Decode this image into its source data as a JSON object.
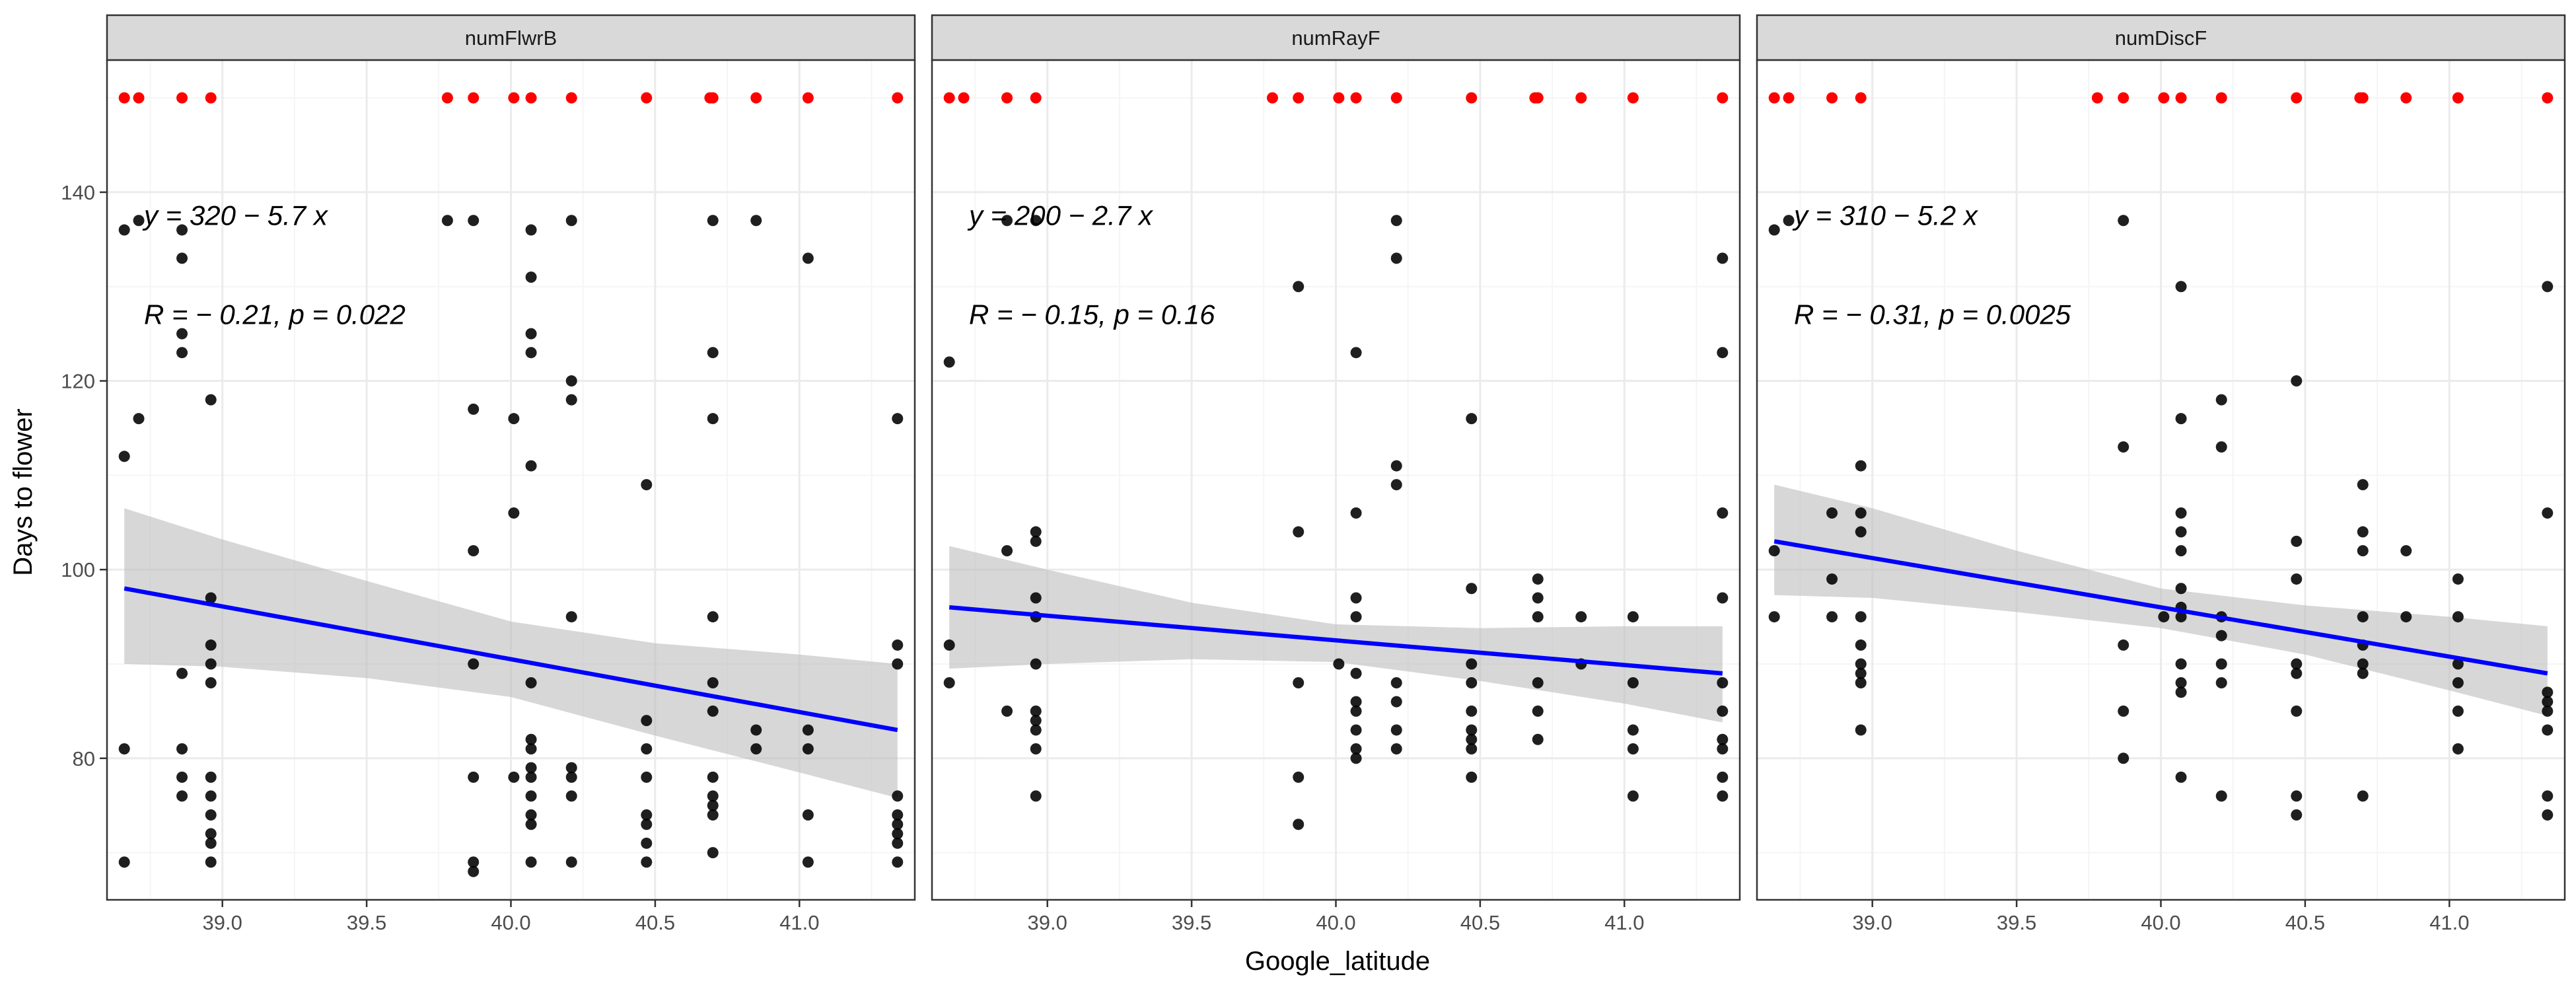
{
  "chart_data": {
    "type": "scatter",
    "xlabel": "Google_latitude",
    "ylabel": "Days to flower",
    "xlim": [
      38.6,
      41.4
    ],
    "ylim": [
      65,
      154
    ],
    "x_ticks": [
      39.0,
      39.5,
      40.0,
      40.5,
      41.0
    ],
    "x_tick_labels": [
      "39.0",
      "39.5",
      "40.0",
      "40.5",
      "41.0"
    ],
    "y_ticks": [
      80,
      100,
      120,
      140
    ],
    "y_tick_labels": [
      "80",
      "100",
      "120",
      "140"
    ],
    "grid": true,
    "colors": {
      "point": "#000000",
      "top_point": "#ff0000",
      "fit_line": "#0000ff",
      "ci_band": "#bebebe",
      "strip_fill": "#d9d9d9",
      "grid_major": "#ebebeb",
      "grid_minor": "#f5f5f5"
    },
    "top_marker_y": 150,
    "panels": [
      {
        "strip": "numFlwrB",
        "equation": "y = 320 − 5.7 x",
        "stats": "R = − 0.21, p = 0.022",
        "fit": {
          "x": [
            38.66,
            41.34
          ],
          "y": [
            98,
            83
          ]
        },
        "ci": [
          [
            38.66,
            106.5,
            90.0
          ],
          [
            39.0,
            103.2,
            89.7
          ],
          [
            39.5,
            98.8,
            88.5
          ],
          [
            40.0,
            94.5,
            86.5
          ],
          [
            40.5,
            92.2,
            82.4
          ],
          [
            41.0,
            91.0,
            78.5
          ],
          [
            41.34,
            90.0,
            75.8
          ]
        ],
        "top_x": [
          38.66,
          38.71,
          38.86,
          38.96,
          39.78,
          39.87,
          40.01,
          40.07,
          40.21,
          40.47,
          40.69,
          40.7,
          40.85,
          41.03,
          41.34
        ],
        "points": [
          [
            38.66,
            136
          ],
          [
            38.71,
            137
          ],
          [
            38.71,
            116
          ],
          [
            38.66,
            112
          ],
          [
            38.66,
            81
          ],
          [
            38.66,
            69
          ],
          [
            38.86,
            136
          ],
          [
            38.86,
            133
          ],
          [
            38.86,
            125
          ],
          [
            38.86,
            123
          ],
          [
            38.86,
            89
          ],
          [
            38.86,
            81
          ],
          [
            38.86,
            78
          ],
          [
            38.86,
            76
          ],
          [
            38.96,
            118
          ],
          [
            38.96,
            97
          ],
          [
            38.96,
            92
          ],
          [
            38.96,
            90
          ],
          [
            38.96,
            88
          ],
          [
            38.96,
            78
          ],
          [
            38.96,
            76
          ],
          [
            38.96,
            74
          ],
          [
            38.96,
            72
          ],
          [
            38.96,
            71
          ],
          [
            38.96,
            69
          ],
          [
            39.78,
            137
          ],
          [
            39.87,
            137
          ],
          [
            39.87,
            117
          ],
          [
            39.87,
            102
          ],
          [
            39.87,
            90
          ],
          [
            39.87,
            78
          ],
          [
            39.87,
            69
          ],
          [
            39.87,
            68
          ],
          [
            40.01,
            116
          ],
          [
            40.01,
            106
          ],
          [
            40.01,
            78
          ],
          [
            40.07,
            136
          ],
          [
            40.07,
            131
          ],
          [
            40.07,
            125
          ],
          [
            40.07,
            123
          ],
          [
            40.07,
            111
          ],
          [
            40.07,
            88
          ],
          [
            40.07,
            82
          ],
          [
            40.07,
            81
          ],
          [
            40.07,
            79
          ],
          [
            40.07,
            78
          ],
          [
            40.07,
            76
          ],
          [
            40.07,
            74
          ],
          [
            40.07,
            73
          ],
          [
            40.07,
            69
          ],
          [
            40.21,
            137
          ],
          [
            40.21,
            120
          ],
          [
            40.21,
            118
          ],
          [
            40.21,
            95
          ],
          [
            40.21,
            79
          ],
          [
            40.21,
            78
          ],
          [
            40.21,
            76
          ],
          [
            40.21,
            69
          ],
          [
            40.47,
            109
          ],
          [
            40.47,
            84
          ],
          [
            40.47,
            81
          ],
          [
            40.47,
            78
          ],
          [
            40.47,
            74
          ],
          [
            40.47,
            73
          ],
          [
            40.47,
            71
          ],
          [
            40.47,
            69
          ],
          [
            40.7,
            137
          ],
          [
            40.7,
            123
          ],
          [
            40.7,
            116
          ],
          [
            40.7,
            95
          ],
          [
            40.7,
            88
          ],
          [
            40.7,
            85
          ],
          [
            40.7,
            78
          ],
          [
            40.7,
            76
          ],
          [
            40.7,
            75
          ],
          [
            40.7,
            74
          ],
          [
            40.7,
            70
          ],
          [
            40.85,
            137
          ],
          [
            40.85,
            83
          ],
          [
            40.85,
            81
          ],
          [
            41.03,
            133
          ],
          [
            41.03,
            83
          ],
          [
            41.03,
            81
          ],
          [
            41.03,
            74
          ],
          [
            41.03,
            69
          ],
          [
            41.34,
            116
          ],
          [
            41.34,
            92
          ],
          [
            41.34,
            90
          ],
          [
            41.34,
            76
          ],
          [
            41.34,
            74
          ],
          [
            41.34,
            73
          ],
          [
            41.34,
            72
          ],
          [
            41.34,
            71
          ],
          [
            41.34,
            69
          ]
        ]
      },
      {
        "strip": "numRayF",
        "equation": "y = 200 − 2.7 x",
        "stats": "R = − 0.15, p = 0.16",
        "fit": {
          "x": [
            38.66,
            41.34
          ],
          "y": [
            96,
            89
          ]
        },
        "ci": [
          [
            38.66,
            102.5,
            89.5
          ],
          [
            39.0,
            100.0,
            90.0
          ],
          [
            39.5,
            96.5,
            90.5
          ],
          [
            40.0,
            94.2,
            90.2
          ],
          [
            40.5,
            93.8,
            88.2
          ],
          [
            41.0,
            94.0,
            85.8
          ],
          [
            41.34,
            94.0,
            83.8
          ]
        ],
        "top_x": [
          38.66,
          38.71,
          38.86,
          38.96,
          39.78,
          39.87,
          40.01,
          40.07,
          40.21,
          40.47,
          40.69,
          40.7,
          40.85,
          41.03,
          41.34
        ],
        "points": [
          [
            38.66,
            122
          ],
          [
            38.66,
            92
          ],
          [
            38.66,
            88
          ],
          [
            38.86,
            137
          ],
          [
            38.86,
            102
          ],
          [
            38.86,
            85
          ],
          [
            38.96,
            137
          ],
          [
            38.96,
            104
          ],
          [
            38.96,
            103
          ],
          [
            38.96,
            97
          ],
          [
            38.96,
            95
          ],
          [
            38.96,
            90
          ],
          [
            38.96,
            85
          ],
          [
            38.96,
            84
          ],
          [
            38.96,
            83
          ],
          [
            38.96,
            81
          ],
          [
            38.96,
            76
          ],
          [
            39.87,
            130
          ],
          [
            39.87,
            104
          ],
          [
            39.87,
            88
          ],
          [
            39.87,
            78
          ],
          [
            39.87,
            73
          ],
          [
            40.01,
            90
          ],
          [
            40.07,
            123
          ],
          [
            40.07,
            106
          ],
          [
            40.07,
            97
          ],
          [
            40.07,
            95
          ],
          [
            40.07,
            89
          ],
          [
            40.07,
            86
          ],
          [
            40.07,
            85
          ],
          [
            40.07,
            83
          ],
          [
            40.07,
            81
          ],
          [
            40.07,
            80
          ],
          [
            40.21,
            137
          ],
          [
            40.21,
            133
          ],
          [
            40.21,
            111
          ],
          [
            40.21,
            109
          ],
          [
            40.21,
            88
          ],
          [
            40.21,
            86
          ],
          [
            40.21,
            83
          ],
          [
            40.21,
            81
          ],
          [
            40.47,
            116
          ],
          [
            40.47,
            98
          ],
          [
            40.47,
            90
          ],
          [
            40.47,
            88
          ],
          [
            40.47,
            85
          ],
          [
            40.47,
            83
          ],
          [
            40.47,
            82
          ],
          [
            40.47,
            81
          ],
          [
            40.47,
            78
          ],
          [
            40.7,
            99
          ],
          [
            40.7,
            97
          ],
          [
            40.7,
            95
          ],
          [
            40.7,
            88
          ],
          [
            40.7,
            85
          ],
          [
            40.7,
            82
          ],
          [
            40.85,
            95
          ],
          [
            40.85,
            90
          ],
          [
            41.03,
            95
          ],
          [
            41.03,
            88
          ],
          [
            41.03,
            83
          ],
          [
            41.03,
            81
          ],
          [
            41.03,
            76
          ],
          [
            41.34,
            133
          ],
          [
            41.34,
            123
          ],
          [
            41.34,
            106
          ],
          [
            41.34,
            97
          ],
          [
            41.34,
            88
          ],
          [
            41.34,
            85
          ],
          [
            41.34,
            82
          ],
          [
            41.34,
            81
          ],
          [
            41.34,
            78
          ],
          [
            41.34,
            76
          ]
        ]
      },
      {
        "strip": "numDiscF",
        "equation": "y = 310 − 5.2 x",
        "stats": "R = − 0.31, p = 0.0025",
        "fit": {
          "x": [
            38.66,
            41.34
          ],
          "y": [
            103,
            89
          ]
        },
        "ci": [
          [
            38.66,
            109.0,
            97.3
          ],
          [
            39.0,
            106.5,
            97.0
          ],
          [
            39.5,
            102.0,
            95.5
          ],
          [
            40.0,
            98.0,
            93.8
          ],
          [
            40.5,
            96.2,
            91.0
          ],
          [
            41.0,
            95.0,
            87.2
          ],
          [
            41.34,
            94.0,
            84.5
          ]
        ],
        "top_x": [
          38.66,
          38.71,
          38.86,
          38.96,
          39.78,
          39.87,
          40.01,
          40.07,
          40.21,
          40.47,
          40.69,
          40.7,
          40.85,
          41.03,
          41.34
        ],
        "points": [
          [
            38.66,
            136
          ],
          [
            38.71,
            137
          ],
          [
            38.66,
            102
          ],
          [
            38.66,
            95
          ],
          [
            38.86,
            106
          ],
          [
            38.86,
            99
          ],
          [
            38.86,
            95
          ],
          [
            38.96,
            111
          ],
          [
            38.96,
            106
          ],
          [
            38.96,
            104
          ],
          [
            38.96,
            95
          ],
          [
            38.96,
            92
          ],
          [
            38.96,
            90
          ],
          [
            38.96,
            89
          ],
          [
            38.96,
            88
          ],
          [
            38.96,
            83
          ],
          [
            39.87,
            137
          ],
          [
            39.87,
            113
          ],
          [
            39.87,
            92
          ],
          [
            39.87,
            85
          ],
          [
            39.87,
            80
          ],
          [
            40.01,
            95
          ],
          [
            40.07,
            130
          ],
          [
            40.07,
            116
          ],
          [
            40.07,
            106
          ],
          [
            40.07,
            104
          ],
          [
            40.07,
            102
          ],
          [
            40.07,
            98
          ],
          [
            40.07,
            96
          ],
          [
            40.07,
            95
          ],
          [
            40.07,
            90
          ],
          [
            40.07,
            88
          ],
          [
            40.07,
            87
          ],
          [
            40.07,
            78
          ],
          [
            40.21,
            118
          ],
          [
            40.21,
            113
          ],
          [
            40.21,
            95
          ],
          [
            40.21,
            93
          ],
          [
            40.21,
            90
          ],
          [
            40.21,
            88
          ],
          [
            40.21,
            76
          ],
          [
            40.47,
            120
          ],
          [
            40.47,
            103
          ],
          [
            40.47,
            99
          ],
          [
            40.47,
            90
          ],
          [
            40.47,
            89
          ],
          [
            40.47,
            85
          ],
          [
            40.47,
            76
          ],
          [
            40.47,
            74
          ],
          [
            40.7,
            109
          ],
          [
            40.7,
            104
          ],
          [
            40.7,
            102
          ],
          [
            40.7,
            95
          ],
          [
            40.7,
            92
          ],
          [
            40.7,
            90
          ],
          [
            40.7,
            89
          ],
          [
            40.7,
            76
          ],
          [
            40.85,
            102
          ],
          [
            40.85,
            95
          ],
          [
            41.03,
            99
          ],
          [
            41.03,
            95
          ],
          [
            41.03,
            90
          ],
          [
            41.03,
            88
          ],
          [
            41.03,
            85
          ],
          [
            41.03,
            81
          ],
          [
            41.34,
            130
          ],
          [
            41.34,
            106
          ],
          [
            41.34,
            87
          ],
          [
            41.34,
            86
          ],
          [
            41.34,
            85
          ],
          [
            41.34,
            83
          ],
          [
            41.34,
            76
          ],
          [
            41.34,
            74
          ]
        ]
      }
    ]
  }
}
